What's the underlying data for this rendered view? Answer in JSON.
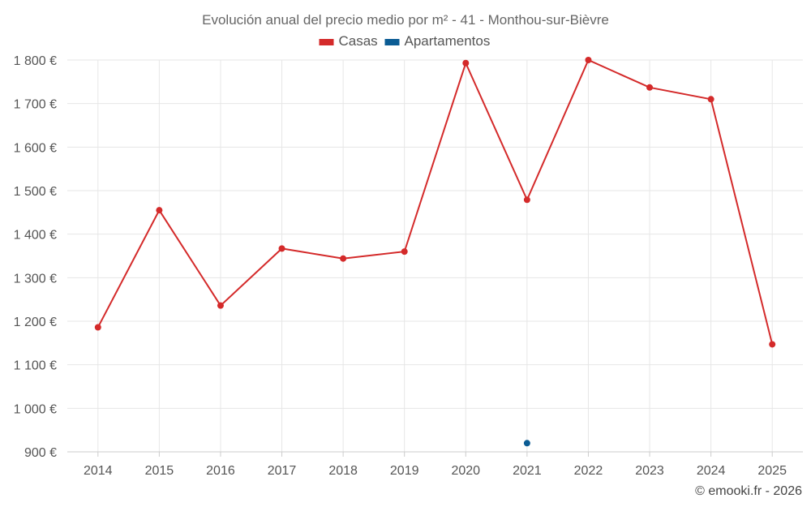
{
  "chart_data": {
    "type": "line",
    "title": "Evolución anual del precio medio por m² - 41 - Monthou-sur-Bièvre",
    "categories": [
      "2014",
      "2015",
      "2016",
      "2017",
      "2018",
      "2019",
      "2020",
      "2021",
      "2022",
      "2023",
      "2024",
      "2025"
    ],
    "series": [
      {
        "name": "Casas",
        "color": "#d42a2a",
        "values": [
          1186,
          1455,
          1236,
          1367,
          1344,
          1360,
          1793,
          1479,
          1800,
          1737,
          1710,
          1147
        ]
      },
      {
        "name": "Apartamentos",
        "color": "#0b5c94",
        "values": [
          null,
          null,
          null,
          null,
          null,
          null,
          null,
          920,
          null,
          null,
          null,
          null
        ]
      }
    ],
    "ylim": [
      900,
      1800
    ],
    "yticks": [
      900,
      1000,
      1100,
      1200,
      1300,
      1400,
      1500,
      1600,
      1700,
      1800
    ],
    "ytick_labels": [
      "900 €",
      "1 000 €",
      "1 100 €",
      "1 200 €",
      "1 300 €",
      "1 400 €",
      "1 500 €",
      "1 600 €",
      "1 700 €",
      "1 800 €"
    ],
    "grid": true,
    "legend_position": "top-center",
    "xlabel": "",
    "ylabel": ""
  },
  "credit": "© emooki.fr - 2026"
}
